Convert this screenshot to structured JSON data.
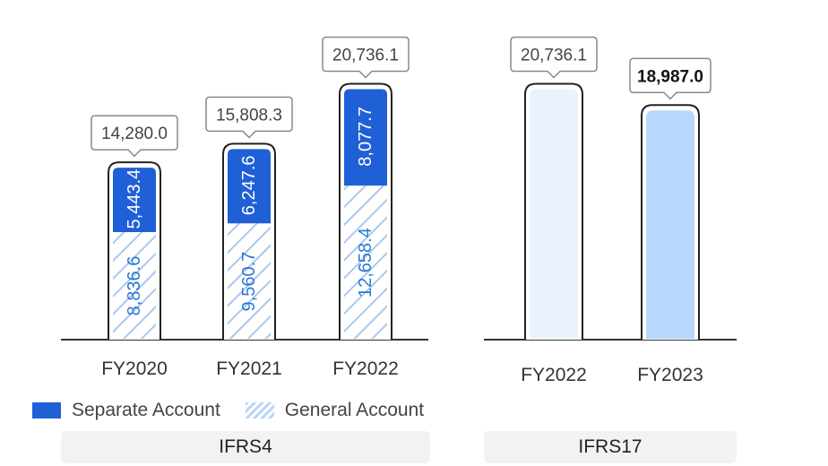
{
  "chart_data": [
    {
      "type": "bar",
      "stacked": true,
      "group_label": "IFRS4",
      "categories": [
        "FY2020",
        "FY2021",
        "FY2022"
      ],
      "series": [
        {
          "name": "General Account",
          "values": [
            8836.6,
            9560.7,
            12658.4
          ],
          "labels": [
            "8,836.6",
            "9,560.7",
            "12,658.4"
          ],
          "color": "#bcd6f5",
          "pattern": "hatch",
          "text_color": "#2a78d2"
        },
        {
          "name": "Separate Account",
          "values": [
            5443.4,
            6247.6,
            8077.7
          ],
          "labels": [
            "5,443.4",
            "6,247.6",
            "8,077.7"
          ],
          "color": "#2060d6",
          "text_color": "#ffffff"
        }
      ],
      "totals": [
        14280.0,
        15808.3,
        20736.1
      ],
      "total_labels": [
        "14,280.0",
        "15,808.3",
        "20,736.1"
      ],
      "ylim": [
        0,
        23500
      ],
      "bold_last_total": false
    },
    {
      "type": "bar",
      "stacked": false,
      "group_label": "IFRS17",
      "categories": [
        "FY2022",
        "FY2023"
      ],
      "values": [
        20736.1,
        18987.0
      ],
      "total_labels": [
        "20,736.1",
        "18,987.0"
      ],
      "colors": [
        "#eaf3fd",
        "#b6d8fb"
      ],
      "ylim": [
        0,
        23500
      ],
      "bold_last_total": true
    }
  ],
  "legend": {
    "separate_label": "Separate Account",
    "general_label": "General Account"
  },
  "groups": {
    "ifrs4_label": "IFRS4",
    "ifrs17_label": "IFRS17"
  }
}
